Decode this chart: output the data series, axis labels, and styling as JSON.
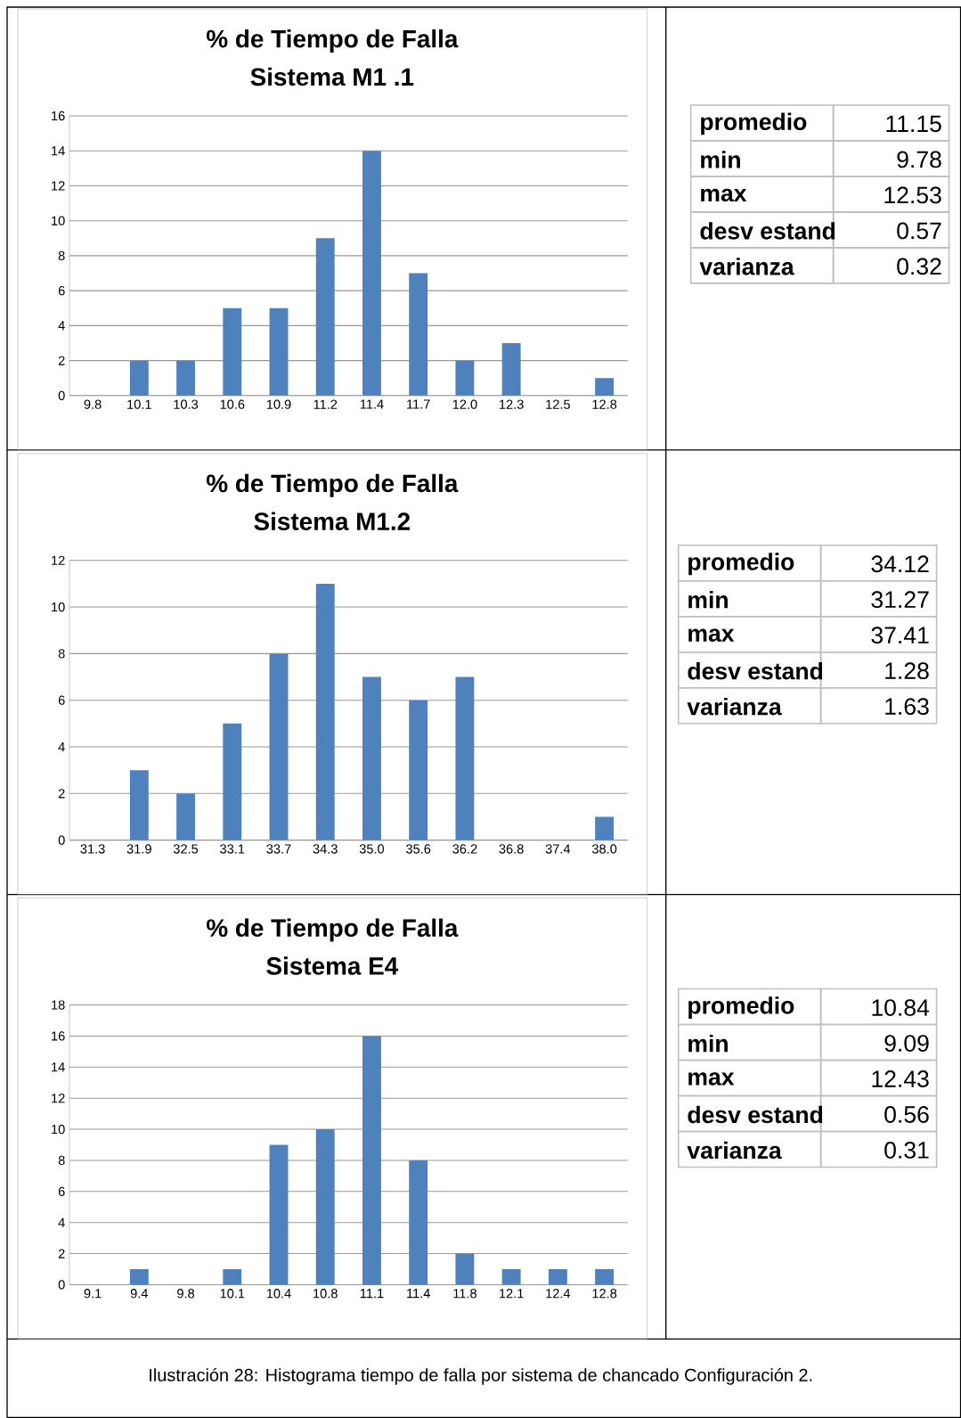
{
  "chart_data": [
    {
      "type": "bar",
      "title": "% de Tiempo de Falla",
      "subtitle": "Sistema M1 .1",
      "categories": [
        "9.8",
        "10.1",
        "10.3",
        "10.6",
        "10.9",
        "11.2",
        "11.4",
        "11.7",
        "12.0",
        "12.3",
        "12.5",
        "12.8"
      ],
      "values": [
        0,
        2,
        2,
        5,
        5,
        9,
        14,
        7,
        2,
        3,
        0,
        1
      ],
      "color": "#4f81bd",
      "ylim": [
        0,
        16
      ],
      "yticks": [
        0,
        2,
        4,
        6,
        8,
        10,
        12,
        14,
        16
      ],
      "grid": "y"
    },
    {
      "type": "other",
      "annotations": [
        "promedio",
        "11.15",
        "min",
        "9.78",
        "max",
        "12.53",
        "desv estand",
        "0.57",
        "varianza",
        "0.32"
      ]
    },
    {
      "type": "bar",
      "title": "% de Tiempo de Falla",
      "subtitle": "Sistema M1.2",
      "categories": [
        "31.3",
        "31.9",
        "32.5",
        "33.1",
        "33.7",
        "34.3",
        "35.0",
        "35.6",
        "36.2",
        "36.8",
        "37.4",
        "38.0"
      ],
      "values": [
        0,
        3,
        2,
        5,
        8,
        11,
        7,
        6,
        7,
        0,
        0,
        1
      ],
      "color": "#4f81bd",
      "ylim": [
        0,
        12
      ],
      "yticks": [
        0,
        2,
        4,
        6,
        8,
        10,
        12
      ],
      "grid": "y"
    },
    {
      "type": "other",
      "annotations": [
        "promedio",
        "34.12",
        "min",
        "31.27",
        "max",
        "37.41",
        "desv estand",
        "1.28",
        "varianza",
        "1.63"
      ]
    },
    {
      "type": "bar",
      "title": "% de Tiempo de Falla",
      "subtitle": "Sistema E4",
      "categories": [
        "9.1",
        "9.4",
        "9.8",
        "10.1",
        "10.4",
        "10.8",
        "11.1",
        "11.4",
        "11.8",
        "12.1",
        "12.4",
        "12.8"
      ],
      "values": [
        0,
        1,
        0,
        1,
        9,
        10,
        16,
        8,
        2,
        1,
        1,
        1
      ],
      "color": "#4f81bd",
      "ylim": [
        0,
        18
      ],
      "yticks": [
        0,
        2,
        4,
        6,
        8,
        10,
        12,
        14,
        16,
        18
      ],
      "grid": "y"
    },
    {
      "type": "other",
      "annotations": [
        "promedio",
        "10.84",
        "min",
        "9.09",
        "max",
        "12.43",
        "desv estand",
        "0.56",
        "varianza",
        "0.31"
      ]
    },
    {
      "type": "other",
      "annotations": [
        "Ilustración 28: Histograma tiempo de falla por sistema de chancado Configuración 2."
      ]
    }
  ]
}
